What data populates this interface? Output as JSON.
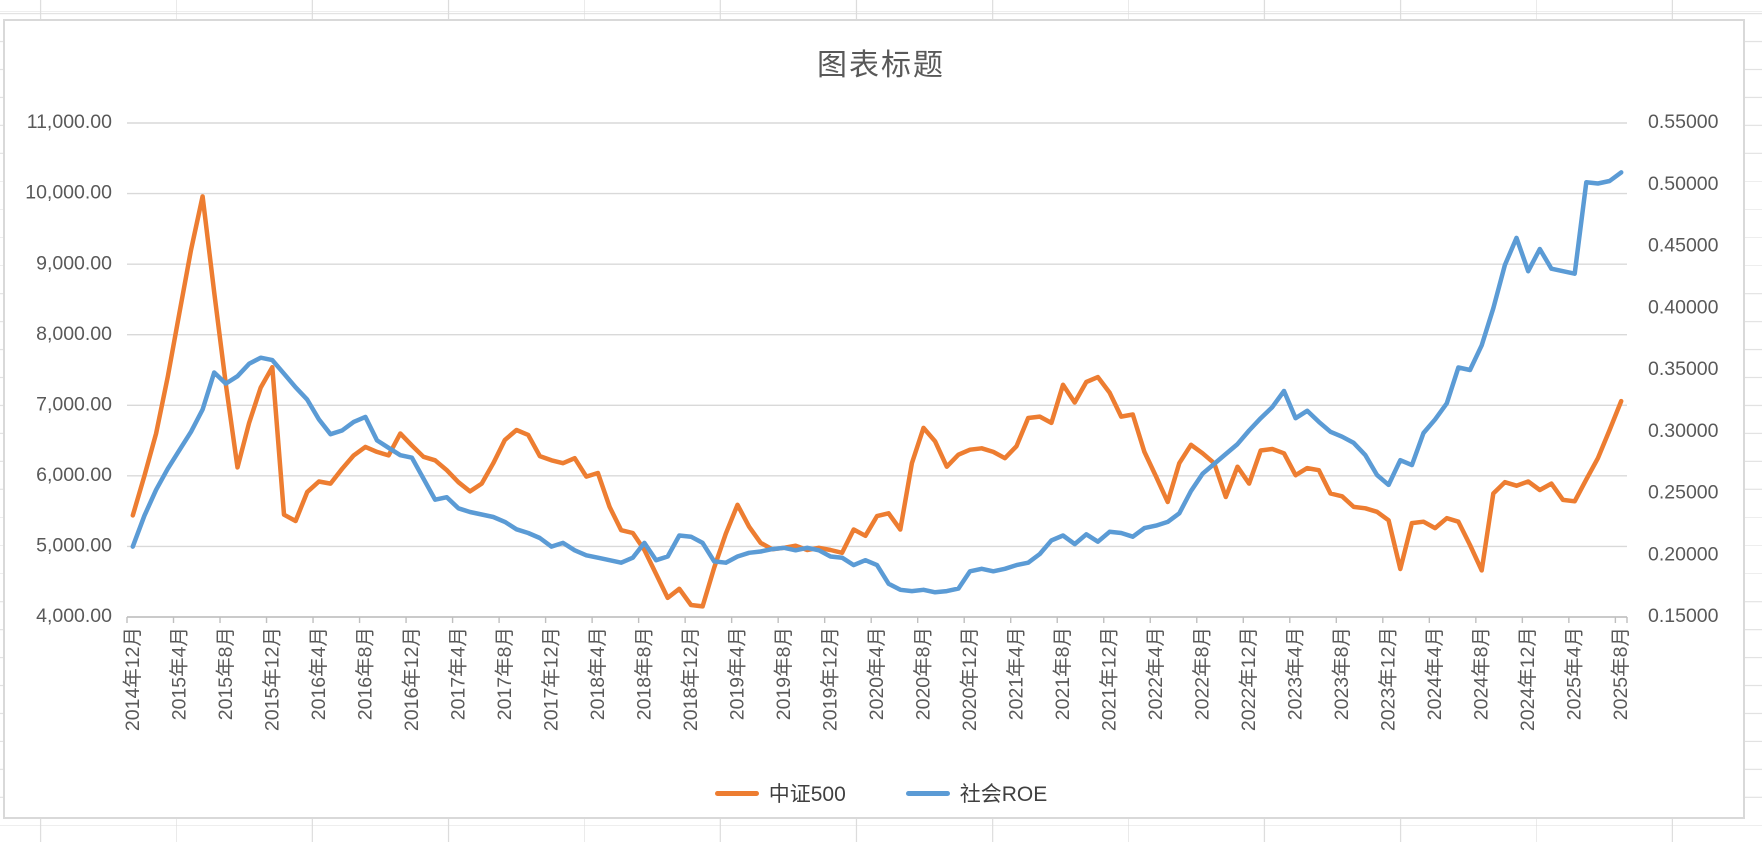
{
  "chart_data": {
    "type": "line",
    "title": "图表标题",
    "legend_position": "bottom",
    "grid": true,
    "background": "#FFFFFF",
    "gridline_color": "#D9D9D9",
    "axis_text_color": "#595959",
    "left_axis": {
      "min": 4000,
      "max": 11000,
      "step": 1000,
      "labels": [
        "11,000.00",
        "10,000.00",
        "9,000.00",
        "8,000.00",
        "7,000.00",
        "6,000.00",
        "5,000.00",
        "4,000.00"
      ]
    },
    "right_axis": {
      "min": 0.15,
      "max": 0.55,
      "step": 0.05,
      "labels": [
        "0.55000",
        "0.50000",
        "0.45000",
        "0.40000",
        "0.35000",
        "0.30000",
        "0.25000",
        "0.20000",
        "0.15000"
      ]
    },
    "x_tick_labels": [
      "2014年12月",
      "2015年4月",
      "2015年8月",
      "2015年12月",
      "2016年4月",
      "2016年8月",
      "2016年12月",
      "2017年4月",
      "2017年8月",
      "2017年12月",
      "2018年4月",
      "2018年8月",
      "2018年12月",
      "2019年4月",
      "2019年8月",
      "2019年12月",
      "2020年4月",
      "2020年8月",
      "2020年12月",
      "2021年4月",
      "2021年8月",
      "2021年12月",
      "2022年4月",
      "2022年8月",
      "2022年12月",
      "2023年4月",
      "2023年8月",
      "2023年12月",
      "2024年4月",
      "2024年8月",
      "2024年12月",
      "2025年4月",
      "2025年8月"
    ],
    "x_frequency": "monthly, every 4th month labeled, 2014-12 through 2025-08, 129 points",
    "series": [
      {
        "name": "中证500",
        "axis": "left",
        "color": "#ED7D31",
        "values": [
          5440,
          6000,
          6600,
          7400,
          8300,
          9200,
          9960,
          8600,
          7300,
          6120,
          6750,
          7250,
          7540,
          5450,
          5360,
          5770,
          5920,
          5890,
          6100,
          6290,
          6410,
          6340,
          6290,
          6600,
          6430,
          6270,
          6220,
          6080,
          5910,
          5780,
          5890,
          6180,
          6510,
          6650,
          6580,
          6280,
          6220,
          6180,
          6250,
          5990,
          6040,
          5560,
          5230,
          5190,
          4950,
          4610,
          4270,
          4400,
          4170,
          4150,
          4700,
          5180,
          5590,
          5280,
          5050,
          4960,
          4980,
          5010,
          4950,
          4980,
          4950,
          4910,
          5240,
          5150,
          5430,
          5470,
          5240,
          6180,
          6680,
          6490,
          6130,
          6300,
          6370,
          6390,
          6340,
          6250,
          6420,
          6820,
          6840,
          6750,
          7290,
          7040,
          7330,
          7400,
          7180,
          6840,
          6870,
          6340,
          5990,
          5630,
          6180,
          6440,
          6320,
          6180,
          5700,
          6130,
          5890,
          6360,
          6380,
          6320,
          6010,
          6110,
          6080,
          5750,
          5710,
          5560,
          5540,
          5490,
          5370,
          4680,
          5330,
          5350,
          5260,
          5400,
          5350,
          5020,
          4660,
          5750,
          5910,
          5860,
          5920,
          5800,
          5890,
          5660,
          5640,
          5950,
          6250,
          6650,
          7060
        ]
      },
      {
        "name": "社会ROE",
        "axis": "right",
        "color": "#5B9BD5",
        "values": [
          0.207,
          0.232,
          0.253,
          0.27,
          0.285,
          0.3,
          0.318,
          0.348,
          0.339,
          0.345,
          0.355,
          0.36,
          0.358,
          0.347,
          0.336,
          0.326,
          0.31,
          0.298,
          0.301,
          0.308,
          0.312,
          0.293,
          0.287,
          0.281,
          0.279,
          0.262,
          0.245,
          0.247,
          0.238,
          0.235,
          0.233,
          0.231,
          0.227,
          0.221,
          0.218,
          0.214,
          0.207,
          0.21,
          0.204,
          0.2,
          0.198,
          0.196,
          0.194,
          0.198,
          0.21,
          0.196,
          0.199,
          0.216,
          0.215,
          0.21,
          0.195,
          0.194,
          0.199,
          0.202,
          0.203,
          0.205,
          0.206,
          0.204,
          0.206,
          0.204,
          0.199,
          0.198,
          0.192,
          0.196,
          0.192,
          0.177,
          0.172,
          0.171,
          0.172,
          0.17,
          0.171,
          0.173,
          0.187,
          0.189,
          0.187,
          0.189,
          0.192,
          0.194,
          0.201,
          0.212,
          0.216,
          0.209,
          0.217,
          0.211,
          0.219,
          0.218,
          0.215,
          0.222,
          0.224,
          0.227,
          0.234,
          0.252,
          0.266,
          0.274,
          0.282,
          0.29,
          0.301,
          0.311,
          0.32,
          0.333,
          0.311,
          0.317,
          0.308,
          0.3,
          0.296,
          0.291,
          0.281,
          0.265,
          0.257,
          0.277,
          0.273,
          0.299,
          0.31,
          0.323,
          0.352,
          0.35,
          0.37,
          0.4,
          0.435,
          0.457,
          0.43,
          0.448,
          0.432,
          0.43,
          0.428,
          0.502,
          0.501,
          0.503,
          0.51
        ]
      }
    ]
  }
}
